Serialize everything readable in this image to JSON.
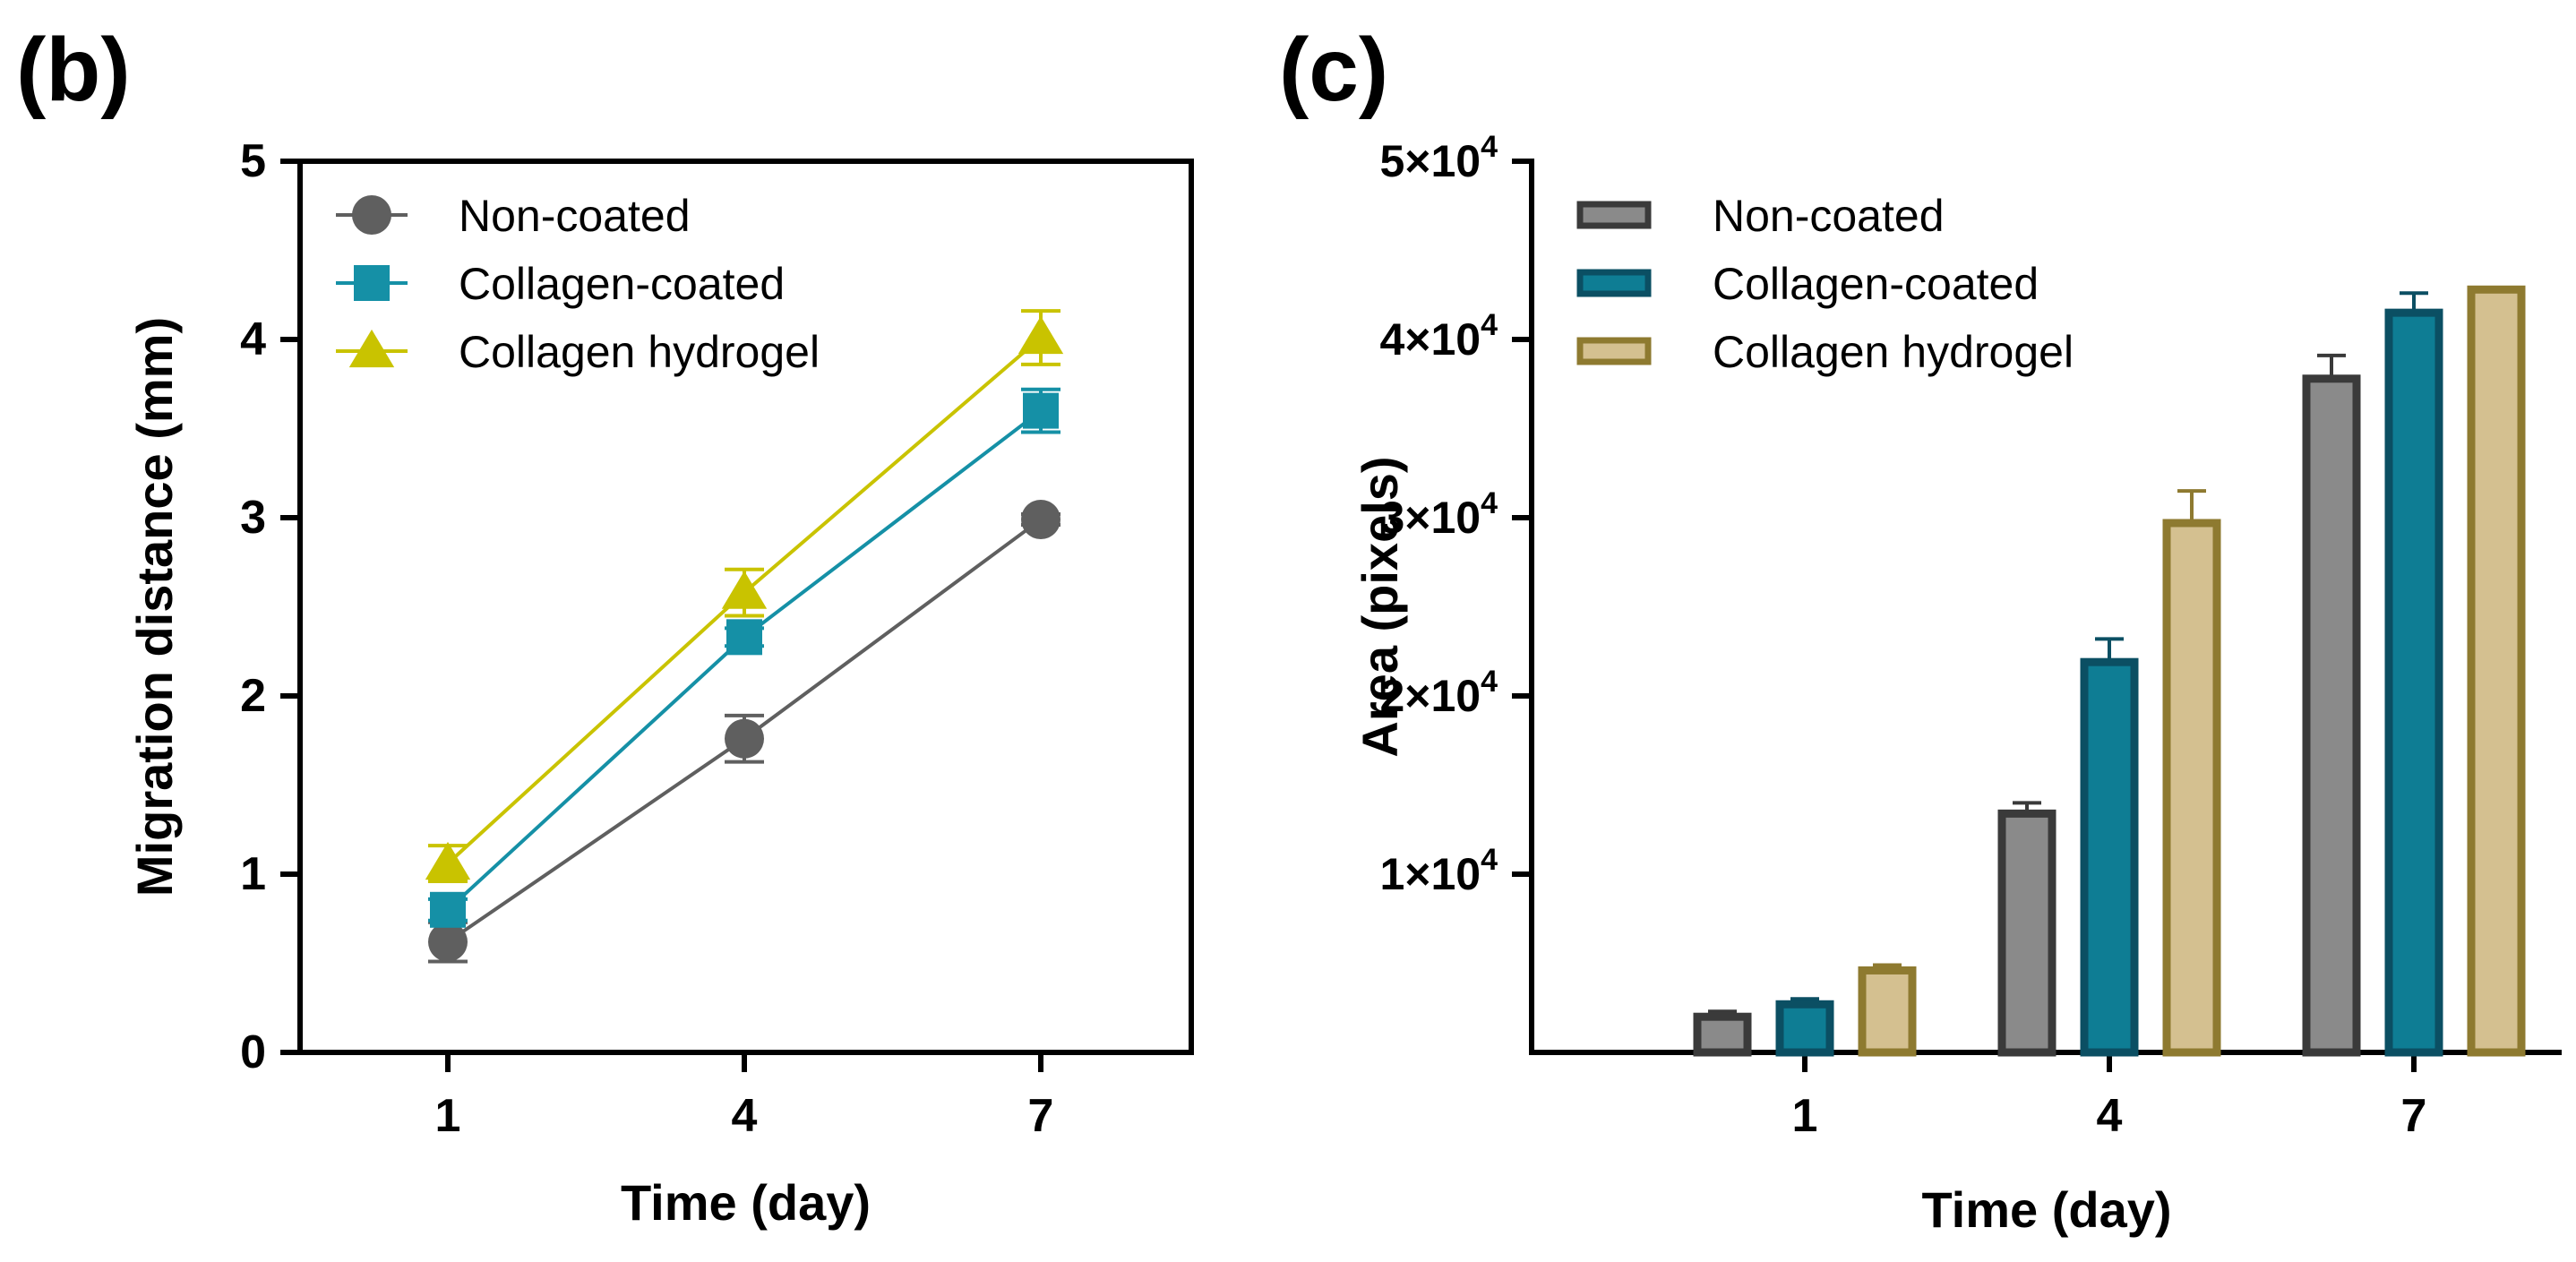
{
  "chart_data": [
    {
      "panel_label": "(b)",
      "type": "line",
      "xlabel": "Time (day)",
      "ylabel": "Migration distance (mm)",
      "x": [
        1,
        4,
        7
      ],
      "x_tick_labels": [
        "1",
        "4",
        "7"
      ],
      "ylim": [
        0,
        5
      ],
      "y_ticks": [
        0,
        1,
        2,
        3,
        4,
        5
      ],
      "y_tick_labels": [
        "0",
        "1",
        "2",
        "3",
        "4",
        "5"
      ],
      "legend_position": "top-left",
      "series": [
        {
          "name": "Non-coated",
          "marker": "circle",
          "color": "#5f5f5f",
          "values": [
            0.62,
            1.76,
            2.99
          ],
          "errors": [
            0.11,
            0.13,
            0.03
          ]
        },
        {
          "name": "Collagen-coated",
          "marker": "square",
          "color": "#1590a6",
          "values": [
            0.8,
            2.33,
            3.6
          ],
          "errors": [
            0.06,
            0.05,
            0.12
          ]
        },
        {
          "name": "Collagen hydrogel",
          "marker": "triangle",
          "color": "#c9c300",
          "values": [
            1.06,
            2.58,
            4.01
          ],
          "errors": [
            0.1,
            0.13,
            0.15
          ]
        }
      ]
    },
    {
      "panel_label": "(c)",
      "type": "bar",
      "xlabel": "Time (day)",
      "ylabel": "Area (pixels)",
      "categories": [
        "1",
        "4",
        "7"
      ],
      "ylim": [
        0,
        50000
      ],
      "y_ticks": [
        10000,
        20000,
        30000,
        40000,
        50000
      ],
      "y_tick_labels": [
        "1×10",
        "2×10",
        "3×10",
        "4×10",
        "5×10"
      ],
      "y_tick_exponent": "4",
      "legend_position": "top-left",
      "series": [
        {
          "name": "Non-coated",
          "fill": "#8a8a8a",
          "stroke": "#3a3a3a",
          "values": [
            2000,
            13400,
            37800
          ],
          "errors": [
            300,
            600,
            1300
          ]
        },
        {
          "name": "Collagen-coated",
          "fill": "#0e7d94",
          "stroke": "#0b4f63",
          "values": [
            2700,
            21900,
            41500
          ],
          "errors": [
            300,
            1300,
            1100
          ]
        },
        {
          "name": "Collagen hydrogel",
          "fill": "#d4c090",
          "stroke": "#8e7a30",
          "values": [
            4600,
            29700,
            42800
          ],
          "errors": [
            300,
            1800,
            0
          ]
        }
      ]
    }
  ]
}
